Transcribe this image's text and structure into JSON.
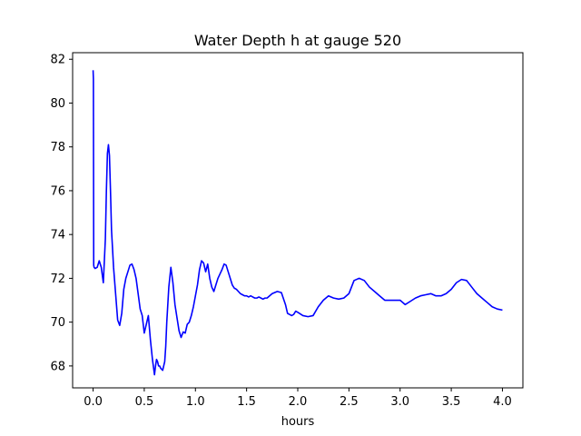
{
  "chart_data": {
    "type": "line",
    "title": "Water Depth h at gauge 520",
    "xlabel": "hours",
    "ylabel": "",
    "xlim": [
      -0.2,
      4.2
    ],
    "ylim": [
      67.0,
      82.3
    ],
    "grid": false,
    "xticks": [
      0.0,
      0.5,
      1.0,
      1.5,
      2.0,
      2.5,
      3.0,
      3.5,
      4.0
    ],
    "xtick_labels": [
      "0.0",
      "0.5",
      "1.0",
      "1.5",
      "2.0",
      "2.5",
      "3.0",
      "3.5",
      "4.0"
    ],
    "yticks": [
      68,
      70,
      72,
      74,
      76,
      78,
      80,
      82
    ],
    "ytick_labels": [
      "68",
      "70",
      "72",
      "74",
      "76",
      "78",
      "80",
      "82"
    ],
    "line_color": "#0000ff",
    "series": [
      {
        "x": [
          0.0,
          0.003,
          0.006,
          0.01,
          0.02,
          0.04,
          0.06,
          0.08,
          0.1,
          0.12,
          0.13,
          0.14,
          0.15,
          0.16,
          0.17,
          0.18,
          0.2,
          0.22,
          0.24,
          0.26,
          0.28,
          0.3,
          0.32,
          0.34,
          0.36,
          0.38,
          0.4,
          0.42,
          0.44,
          0.46,
          0.48,
          0.5,
          0.52,
          0.54,
          0.56,
          0.58,
          0.6,
          0.61,
          0.62,
          0.63,
          0.64,
          0.65,
          0.66,
          0.68,
          0.7,
          0.71,
          0.72,
          0.74,
          0.76,
          0.78,
          0.8,
          0.82,
          0.84,
          0.86,
          0.88,
          0.9,
          0.92,
          0.94,
          0.96,
          0.98,
          1.0,
          1.02,
          1.04,
          1.06,
          1.08,
          1.1,
          1.12,
          1.14,
          1.16,
          1.18,
          1.2,
          1.22,
          1.24,
          1.26,
          1.28,
          1.3,
          1.32,
          1.34,
          1.36,
          1.38,
          1.4,
          1.42,
          1.44,
          1.46,
          1.48,
          1.5,
          1.52,
          1.54,
          1.56,
          1.58,
          1.6,
          1.62,
          1.64,
          1.66,
          1.68,
          1.7,
          1.75,
          1.8,
          1.84,
          1.88,
          1.9,
          1.92,
          1.94,
          1.96,
          1.98,
          2.0,
          2.05,
          2.1,
          2.15,
          2.2,
          2.25,
          2.3,
          2.35,
          2.4,
          2.45,
          2.5,
          2.55,
          2.6,
          2.65,
          2.7,
          2.75,
          2.8,
          2.85,
          2.9,
          2.95,
          3.0,
          3.05,
          3.1,
          3.15,
          3.2,
          3.25,
          3.3,
          3.35,
          3.4,
          3.45,
          3.5,
          3.55,
          3.6,
          3.65,
          3.7,
          3.75,
          3.8,
          3.85,
          3.9,
          3.95,
          4.0
        ],
        "y": [
          81.5,
          81.1,
          72.6,
          72.5,
          72.45,
          72.5,
          72.8,
          72.5,
          71.8,
          73.8,
          76.0,
          77.7,
          78.1,
          77.6,
          76.0,
          74.2,
          72.5,
          71.3,
          70.1,
          69.85,
          70.4,
          71.5,
          72.0,
          72.3,
          72.6,
          72.65,
          72.4,
          72.0,
          71.3,
          70.6,
          70.3,
          69.5,
          69.9,
          70.3,
          69.2,
          68.3,
          67.6,
          68.0,
          68.3,
          68.2,
          68.0,
          68.0,
          67.9,
          67.8,
          68.2,
          68.9,
          70.0,
          71.6,
          72.5,
          71.8,
          70.8,
          70.2,
          69.6,
          69.3,
          69.55,
          69.5,
          69.9,
          70.0,
          70.3,
          70.7,
          71.2,
          71.7,
          72.4,
          72.8,
          72.7,
          72.3,
          72.65,
          72.0,
          71.6,
          71.4,
          71.7,
          72.0,
          72.2,
          72.4,
          72.65,
          72.6,
          72.3,
          72.0,
          71.7,
          71.55,
          71.5,
          71.4,
          71.3,
          71.25,
          71.2,
          71.2,
          71.15,
          71.2,
          71.15,
          71.1,
          71.1,
          71.15,
          71.1,
          71.05,
          71.1,
          71.1,
          71.3,
          71.4,
          71.35,
          70.8,
          70.4,
          70.35,
          70.3,
          70.35,
          70.5,
          70.45,
          70.3,
          70.25,
          70.3,
          70.7,
          71.0,
          71.2,
          71.1,
          71.05,
          71.1,
          71.3,
          71.9,
          72.0,
          71.9,
          71.6,
          71.4,
          71.2,
          71.0,
          71.0,
          71.0,
          71.0,
          70.8,
          70.95,
          71.1,
          71.2,
          71.25,
          71.3,
          71.2,
          71.2,
          71.3,
          71.5,
          71.8,
          71.95,
          71.9,
          71.6,
          71.3,
          71.1,
          70.9,
          70.7,
          70.6,
          70.55
        ]
      }
    ]
  }
}
